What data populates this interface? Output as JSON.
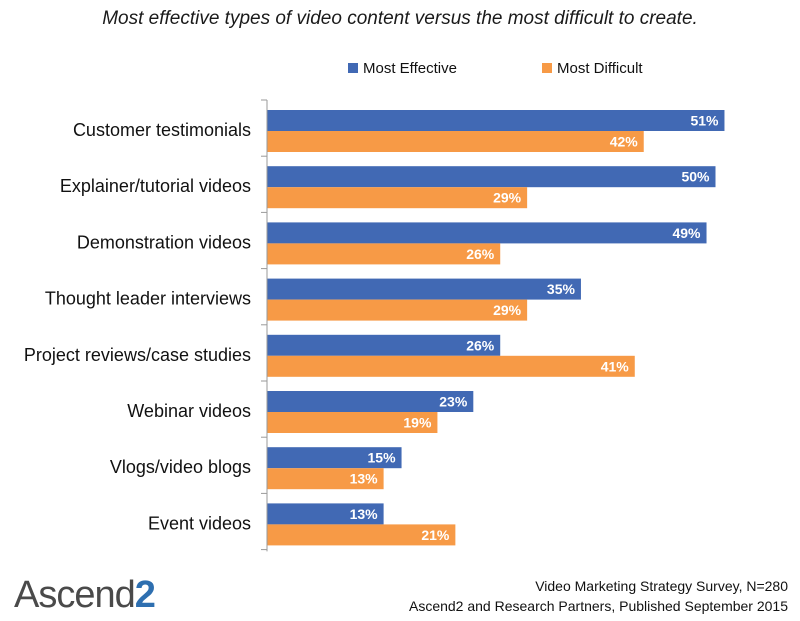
{
  "title": "Most effective types of video content versus the most difficult to create.",
  "legend": [
    {
      "name": "Most Effective",
      "color": "#4169b4"
    },
    {
      "name": "Most Difficult",
      "color": "#f79a46"
    }
  ],
  "chart_data": {
    "type": "bar",
    "orientation": "horizontal",
    "categories": [
      "Customer testimonials",
      "Explainer/tutorial videos",
      "Demonstration videos",
      "Thought leader interviews",
      "Project reviews/case studies",
      "Webinar videos",
      "Vlogs/video blogs",
      "Event videos"
    ],
    "series": [
      {
        "name": "Most Effective",
        "color": "#4169b4",
        "values": [
          51,
          50,
          49,
          35,
          26,
          23,
          15,
          13
        ],
        "labels": [
          "51%",
          "50%",
          "49%",
          "35%",
          "26%",
          "23%",
          "15%",
          "13%"
        ]
      },
      {
        "name": "Most Difficult",
        "color": "#f79a46",
        "values": [
          42,
          29,
          26,
          29,
          41,
          19,
          13,
          21
        ],
        "labels": [
          "42%",
          "29%",
          "26%",
          "29%",
          "41%",
          "19%",
          "13%",
          "21%"
        ]
      }
    ],
    "xlim": [
      0,
      60
    ],
    "legend_position": "top",
    "grid": false
  },
  "footer": {
    "line1": "Video Marketing Strategy Survey, N=280",
    "line2": "Ascend2 and Research Partners, Published September 2015"
  },
  "logo": {
    "text": "Ascend",
    "accent": "2"
  }
}
